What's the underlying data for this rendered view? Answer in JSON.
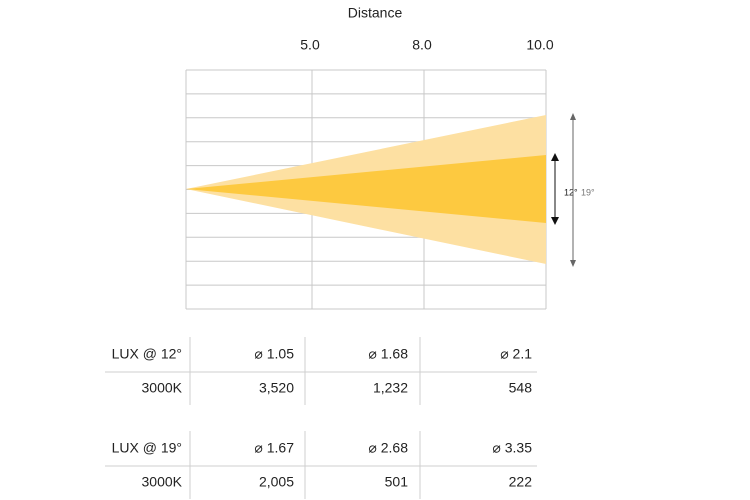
{
  "header": {
    "title": "Distance",
    "distances": [
      "5.0",
      "8.0",
      "10.0"
    ]
  },
  "beams": [
    {
      "label": "12°"
    },
    {
      "label": "19°"
    }
  ],
  "tables": [
    {
      "rows": [
        [
          "LUX @ 12°",
          "⌀ 1.05",
          "⌀ 1.68",
          "⌀ 2.1"
        ],
        [
          "3000K",
          "3,520",
          "1,232",
          "548"
        ]
      ]
    },
    {
      "rows": [
        [
          "LUX @ 19°",
          "⌀ 1.67",
          "⌀ 2.68",
          "⌀ 3.35"
        ],
        [
          "3000K",
          "2,005",
          "501",
          "222"
        ]
      ]
    }
  ]
}
